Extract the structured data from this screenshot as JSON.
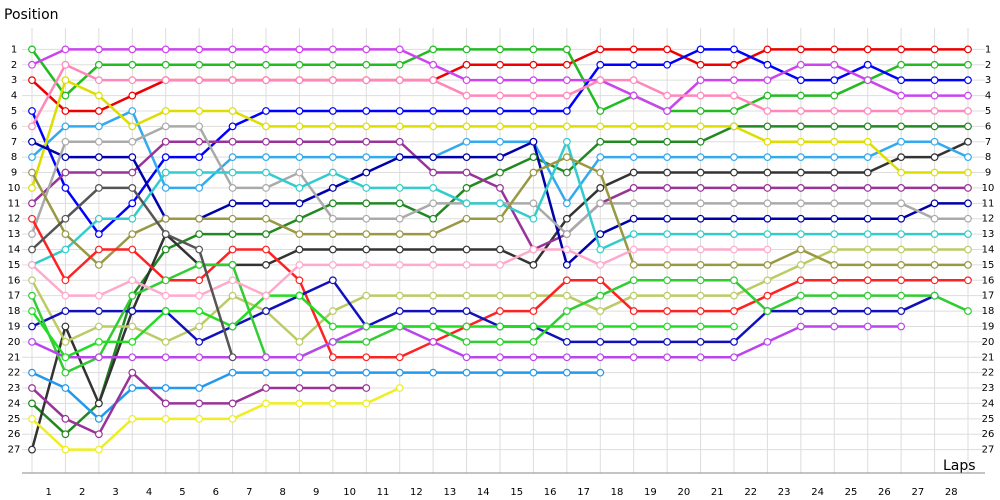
{
  "chart_data": {
    "type": "line",
    "title": "Position",
    "x_label": "Laps",
    "x": [
      0,
      1,
      2,
      3,
      4,
      5,
      6,
      7,
      8,
      9,
      10,
      11,
      12,
      13,
      14,
      15,
      16,
      17,
      18,
      19,
      20,
      21,
      22,
      23,
      24,
      25,
      26,
      27,
      28
    ],
    "xlim": [
      0,
      28
    ],
    "lap_labels": [
      1,
      2,
      3,
      4,
      5,
      6,
      7,
      8,
      9,
      10,
      11,
      12,
      13,
      14,
      15,
      16,
      17,
      18,
      19,
      20,
      21,
      22,
      23,
      24,
      25,
      26,
      27,
      28
    ],
    "ylim": [
      28,
      0
    ],
    "yticks": [
      1,
      2,
      3,
      4,
      5,
      6,
      7,
      8,
      9,
      10,
      11,
      12,
      13,
      14,
      15,
      16,
      17,
      18,
      19,
      20,
      21,
      22,
      23,
      24,
      25,
      26,
      27
    ],
    "grid": true,
    "series": [
      {
        "color": "#ee0000",
        "values": [
          3,
          5,
          5,
          4,
          3,
          3,
          3,
          3,
          3,
          3,
          3,
          3,
          3,
          2,
          2,
          2,
          2,
          1,
          1,
          1,
          2,
          2,
          1,
          1,
          1,
          1,
          1,
          1,
          1
        ]
      },
      {
        "color": "#22bb22",
        "values": [
          1,
          4,
          2,
          2,
          2,
          2,
          2,
          2,
          2,
          2,
          2,
          2,
          1,
          1,
          1,
          1,
          1,
          5,
          4,
          5,
          5,
          5,
          4,
          4,
          4,
          3,
          2,
          2,
          2
        ]
      },
      {
        "color": "#0000ff",
        "values": [
          5,
          10,
          13,
          11,
          8,
          8,
          6,
          5,
          5,
          5,
          5,
          5,
          5,
          5,
          5,
          5,
          5,
          2,
          2,
          2,
          1,
          1,
          2,
          3,
          3,
          2,
          3,
          3,
          3
        ]
      },
      {
        "color": "#cc44ee",
        "values": [
          2,
          1,
          1,
          1,
          1,
          1,
          1,
          1,
          1,
          1,
          1,
          1,
          2,
          3,
          3,
          3,
          3,
          3,
          4,
          5,
          3,
          3,
          3,
          2,
          2,
          3,
          4,
          4,
          4
        ]
      },
      {
        "color": "#ff88bb",
        "values": [
          6,
          2,
          3,
          3,
          3,
          3,
          3,
          3,
          3,
          3,
          3,
          3,
          3,
          4,
          4,
          4,
          4,
          3,
          3,
          4,
          4,
          4,
          5,
          5,
          5,
          5,
          5,
          5,
          5
        ]
      },
      {
        "color": "#228822",
        "values": [
          24,
          26,
          24,
          17,
          14,
          13,
          13,
          13,
          12,
          11,
          11,
          11,
          12,
          10,
          9,
          8,
          9,
          7,
          7,
          7,
          7,
          6,
          6,
          6,
          6,
          6,
          6,
          6,
          6
        ]
      },
      {
        "color": "#333333",
        "values": [
          27,
          19,
          24,
          18,
          13,
          15,
          15,
          15,
          14,
          14,
          14,
          14,
          14,
          14,
          14,
          15,
          12,
          10,
          9,
          9,
          9,
          9,
          9,
          9,
          9,
          9,
          8,
          8,
          7
        ]
      },
      {
        "color": "#33aaee",
        "values": [
          8,
          6,
          6,
          5,
          10,
          10,
          8,
          8,
          8,
          8,
          8,
          8,
          8,
          7,
          7,
          7,
          11,
          8,
          8,
          8,
          8,
          8,
          8,
          8,
          8,
          8,
          7,
          7,
          8
        ]
      },
      {
        "color": "#dddd00",
        "values": [
          10,
          3,
          4,
          6,
          5,
          5,
          5,
          6,
          6,
          6,
          6,
          6,
          6,
          6,
          6,
          6,
          6,
          6,
          6,
          6,
          6,
          6,
          7,
          7,
          7,
          7,
          9,
          9,
          9
        ]
      },
      {
        "color": "#993399",
        "values": [
          11,
          9,
          9,
          9,
          7,
          7,
          7,
          7,
          7,
          7,
          7,
          7,
          9,
          9,
          10,
          14,
          13,
          11,
          10,
          10,
          10,
          10,
          10,
          10,
          10,
          10,
          10,
          10,
          10
        ]
      },
      {
        "color": "#0000aa",
        "values": [
          7,
          8,
          8,
          8,
          12,
          12,
          11,
          11,
          11,
          10,
          9,
          8,
          8,
          8,
          8,
          7,
          15,
          13,
          12,
          12,
          12,
          12,
          12,
          12,
          12,
          12,
          12,
          11,
          11
        ]
      },
      {
        "color": "#aaaaaa",
        "values": [
          13,
          7,
          7,
          7,
          6,
          6,
          10,
          10,
          9,
          12,
          12,
          12,
          11,
          11,
          11,
          11,
          13,
          11,
          11,
          11,
          11,
          11,
          11,
          11,
          11,
          11,
          11,
          12,
          12
        ]
      },
      {
        "color": "#33cccc",
        "values": [
          15,
          14,
          12,
          12,
          9,
          9,
          9,
          9,
          10,
          9,
          10,
          10,
          10,
          11,
          11,
          12,
          7,
          14,
          13,
          13,
          13,
          13,
          13,
          13,
          13,
          13,
          13,
          13,
          13
        ]
      },
      {
        "color": "#bbcc66",
        "values": [
          16,
          20,
          19,
          19,
          20,
          19,
          17,
          18,
          20,
          18,
          17,
          17,
          17,
          17,
          17,
          17,
          17,
          18,
          17,
          17,
          17,
          17,
          16,
          15,
          14,
          14,
          14,
          14,
          14
        ]
      },
      {
        "color": "#999944",
        "values": [
          9,
          13,
          15,
          13,
          12,
          12,
          12,
          12,
          13,
          13,
          13,
          13,
          13,
          12,
          12,
          9,
          8,
          9,
          15,
          15,
          15,
          15,
          15,
          14,
          15,
          15,
          15,
          15,
          15
        ]
      },
      {
        "color": "#ff2222",
        "values": [
          12,
          16,
          14,
          14,
          16,
          16,
          14,
          14,
          16,
          21,
          21,
          21,
          20,
          19,
          18,
          18,
          16,
          16,
          18,
          18,
          18,
          18,
          17,
          16,
          16,
          16,
          16,
          16,
          16
        ]
      },
      {
        "color": "#1111bb",
        "values": [
          19,
          18,
          18,
          18,
          18,
          20,
          19,
          18,
          17,
          16,
          19,
          18,
          18,
          18,
          19,
          19,
          20,
          20,
          20,
          20,
          20,
          20,
          18,
          18,
          18,
          18,
          18,
          17,
          null
        ]
      },
      {
        "color": "#33cc33",
        "values": [
          17,
          22,
          21,
          17,
          16,
          15,
          15,
          21,
          21,
          20,
          20,
          19,
          19,
          20,
          20,
          20,
          18,
          17,
          16,
          16,
          16,
          16,
          18,
          17,
          17,
          17,
          17,
          17,
          18
        ]
      },
      {
        "color": "#bb44ee",
        "values": [
          20,
          21,
          21,
          21,
          21,
          21,
          21,
          21,
          21,
          20,
          19,
          19,
          20,
          21,
          21,
          21,
          21,
          21,
          21,
          21,
          21,
          21,
          20,
          19,
          19,
          19,
          19,
          null,
          null
        ]
      },
      {
        "color": "#22dd22",
        "values": [
          18,
          21,
          20,
          20,
          18,
          18,
          19,
          17,
          17,
          19,
          19,
          19,
          19,
          19,
          19,
          19,
          19,
          19,
          19,
          19,
          19,
          19,
          null,
          null,
          null,
          null,
          null,
          null,
          null
        ]
      },
      {
        "color": "#2299ee",
        "values": [
          22,
          23,
          25,
          23,
          23,
          23,
          22,
          22,
          22,
          22,
          22,
          22,
          22,
          22,
          22,
          22,
          22,
          22,
          null,
          null,
          null,
          null,
          null,
          null,
          null,
          null,
          null,
          null,
          null
        ]
      },
      {
        "color": "#ffaacc",
        "values": [
          15,
          17,
          17,
          16,
          17,
          17,
          16,
          17,
          15,
          15,
          15,
          15,
          15,
          15,
          15,
          14,
          14,
          15,
          14,
          14,
          14,
          14,
          14,
          null,
          null,
          null,
          null,
          null,
          null
        ]
      },
      {
        "color": "#993399",
        "values": [
          23,
          25,
          26,
          22,
          24,
          24,
          24,
          23,
          23,
          23,
          23,
          null,
          null,
          null,
          null,
          null,
          null,
          null,
          null,
          null,
          null,
          null,
          null,
          null,
          null,
          null,
          null,
          null,
          null
        ]
      },
      {
        "color": "#eeee22",
        "values": [
          25,
          27,
          27,
          25,
          25,
          25,
          25,
          24,
          24,
          24,
          24,
          23,
          null,
          null,
          null,
          null,
          null,
          null,
          null,
          null,
          null,
          null,
          null,
          null,
          null,
          null,
          null,
          null,
          null
        ]
      },
      {
        "color": "#555555",
        "values": [
          14,
          12,
          10,
          10,
          13,
          14,
          21,
          null,
          null,
          null,
          null,
          null,
          null,
          null,
          null,
          null,
          null,
          null,
          null,
          null,
          null,
          null,
          null,
          null,
          null,
          null,
          null,
          null,
          null
        ]
      }
    ]
  }
}
